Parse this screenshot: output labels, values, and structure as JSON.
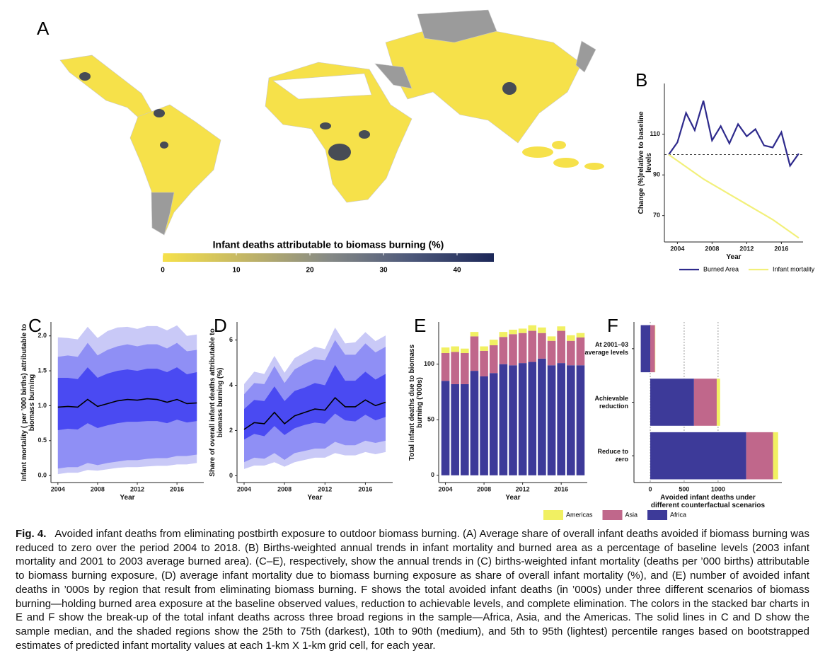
{
  "chart_data": [
    {
      "type": "map",
      "panel": "A",
      "no_data_color": "#9b9b9b",
      "colorbar": {
        "title": "Infant deaths attributable to biomass burning (%)",
        "lim": [
          0,
          45
        ],
        "ticks": [
          0,
          10,
          20,
          30,
          40
        ],
        "colors": [
          "#f6e14a",
          "#c2b566",
          "#868a86",
          "#4d587a",
          "#1c2758"
        ]
      }
    },
    {
      "type": "line",
      "panel": "B",
      "x": [
        2003,
        2004,
        2005,
        2006,
        2007,
        2008,
        2009,
        2010,
        2011,
        2012,
        2013,
        2014,
        2015,
        2016,
        2017,
        2018
      ],
      "xlim": [
        2002.5,
        2018.5
      ],
      "xticks": [
        2004,
        2008,
        2012,
        2016
      ],
      "ylim": [
        57,
        135
      ],
      "yticks": [
        70,
        90,
        110
      ],
      "xlabel": "Year",
      "ylabel": "Change (%)relative to baseline levels",
      "reference_line": 100,
      "legend": "bottom",
      "series": [
        {
          "name": "Burned Area",
          "color": "#2e2a8c",
          "values": [
            100,
            106,
            120.5,
            112,
            126.5,
            107,
            114,
            105.5,
            115,
            109,
            112.5,
            104.5,
            103.5,
            111,
            94.5,
            100.5
          ]
        },
        {
          "name": "Infant mortality",
          "color": "#f2f07a",
          "values": [
            100,
            97,
            94,
            91,
            88,
            85.5,
            83,
            80.5,
            78,
            75.5,
            73,
            70.5,
            68,
            65,
            62,
            59
          ]
        }
      ]
    },
    {
      "type": "band",
      "panel": "C",
      "x": [
        2004,
        2005,
        2006,
        2007,
        2008,
        2009,
        2010,
        2011,
        2012,
        2013,
        2014,
        2015,
        2016,
        2017,
        2018
      ],
      "xlim": [
        2003.3,
        2018.7
      ],
      "xticks": [
        2004,
        2008,
        2012,
        2016
      ],
      "ylim": [
        -0.1,
        2.2
      ],
      "yticks": [
        {
          "value": 0,
          "label": "0.0"
        },
        {
          "value": 0.5,
          "label": "0.5"
        },
        {
          "value": 1,
          "label": "1.0"
        },
        {
          "value": 1.5,
          "label": "1.5"
        },
        {
          "value": 2,
          "label": "2.0"
        }
      ],
      "xlabel": "Year",
      "ylabel": "Infant mortality ( per ’000 births) attributable to biomass burning",
      "bands": [
        {
          "color": "#c9c9f7",
          "lower": [
            0.02,
            0.04,
            0.04,
            0.08,
            0.07,
            0.09,
            0.11,
            0.12,
            0.12,
            0.13,
            0.14,
            0.14,
            0.16,
            0.16,
            0.18
          ],
          "upper": [
            1.98,
            1.97,
            1.95,
            2.13,
            1.97,
            2.07,
            2.12,
            2.13,
            2.1,
            2.14,
            2.14,
            2.08,
            2.15,
            2.0,
            2.02
          ]
        },
        {
          "color": "#8f8ff5",
          "lower": [
            0.1,
            0.12,
            0.12,
            0.18,
            0.15,
            0.18,
            0.2,
            0.22,
            0.22,
            0.24,
            0.25,
            0.25,
            0.28,
            0.28,
            0.3
          ],
          "upper": [
            1.7,
            1.72,
            1.7,
            1.9,
            1.72,
            1.8,
            1.85,
            1.88,
            1.85,
            1.88,
            1.88,
            1.82,
            1.9,
            1.78,
            1.8
          ]
        },
        {
          "color": "#4a4af2",
          "lower": [
            0.65,
            0.67,
            0.66,
            0.75,
            0.68,
            0.72,
            0.75,
            0.77,
            0.77,
            0.78,
            0.78,
            0.75,
            0.8,
            0.76,
            0.78
          ],
          "upper": [
            1.4,
            1.4,
            1.38,
            1.55,
            1.4,
            1.46,
            1.5,
            1.52,
            1.5,
            1.53,
            1.53,
            1.48,
            1.55,
            1.45,
            1.48
          ]
        }
      ],
      "median": {
        "color": "#000000",
        "values": [
          0.98,
          0.99,
          0.98,
          1.09,
          0.99,
          1.03,
          1.07,
          1.09,
          1.08,
          1.1,
          1.09,
          1.05,
          1.09,
          1.03,
          1.04
        ]
      }
    },
    {
      "type": "band",
      "panel": "D",
      "x": [
        2004,
        2005,
        2006,
        2007,
        2008,
        2009,
        2010,
        2011,
        2012,
        2013,
        2014,
        2015,
        2016,
        2017,
        2018
      ],
      "xlim": [
        2003.3,
        2018.7
      ],
      "xticks": [
        2004,
        2008,
        2012,
        2016
      ],
      "ylim": [
        -0.3,
        6.8
      ],
      "yticks": [
        0,
        2,
        4,
        6
      ],
      "xlabel": "Year",
      "ylabel": "Share of overall infant deaths attributable to biomass burning (%)",
      "bands": [
        {
          "color": "#c9c9f7",
          "lower": [
            0.3,
            0.45,
            0.45,
            0.6,
            0.4,
            0.6,
            0.7,
            0.8,
            0.8,
            1.0,
            0.9,
            0.9,
            1.05,
            0.95,
            1.05
          ],
          "upper": [
            4.05,
            4.6,
            4.5,
            5.3,
            4.55,
            5.2,
            5.45,
            5.7,
            5.6,
            6.55,
            5.85,
            5.9,
            6.35,
            5.95,
            6.2
          ]
        },
        {
          "color": "#8f8ff5",
          "lower": [
            0.6,
            0.8,
            0.75,
            1.0,
            0.7,
            1.0,
            1.1,
            1.2,
            1.2,
            1.5,
            1.35,
            1.35,
            1.55,
            1.45,
            1.55
          ],
          "upper": [
            3.6,
            4.1,
            4.05,
            4.85,
            4.1,
            4.7,
            4.95,
            5.15,
            5.1,
            6.0,
            5.35,
            5.35,
            5.85,
            5.45,
            5.7
          ]
        },
        {
          "color": "#4a4af2",
          "lower": [
            1.6,
            1.85,
            1.75,
            2.2,
            1.8,
            2.1,
            2.25,
            2.35,
            2.3,
            2.75,
            2.45,
            2.4,
            2.7,
            2.45,
            2.6
          ],
          "upper": [
            2.95,
            3.35,
            3.3,
            3.95,
            3.3,
            3.75,
            3.9,
            4.1,
            4.0,
            4.9,
            4.2,
            4.2,
            4.6,
            4.25,
            4.5
          ]
        }
      ],
      "median": {
        "color": "#000000",
        "values": [
          2.05,
          2.35,
          2.3,
          2.8,
          2.3,
          2.65,
          2.8,
          2.95,
          2.9,
          3.45,
          3.05,
          3.05,
          3.35,
          3.1,
          3.25
        ]
      }
    },
    {
      "type": "bar",
      "panel": "E",
      "stacked": true,
      "x": [
        2004,
        2005,
        2006,
        2007,
        2008,
        2009,
        2010,
        2011,
        2012,
        2013,
        2014,
        2015,
        2016,
        2017,
        2018
      ],
      "xlim": [
        2003.3,
        2018.7
      ],
      "xticks": [
        2004,
        2008,
        2012,
        2016
      ],
      "ylim": [
        -6.5,
        138
      ],
      "yticks": [
        0,
        50,
        100
      ],
      "xlabel": "Year",
      "ylabel": "Total infant deaths due to biomass burning (’000s)",
      "legend": "bottom-right",
      "series": [
        {
          "name": "Africa",
          "color": "#3d3a99",
          "values": [
            85,
            82,
            82,
            94,
            89,
            92,
            100,
            99,
            101,
            102,
            105,
            99,
            101,
            99,
            99
          ]
        },
        {
          "name": "Asia",
          "color": "#c0678b",
          "values": [
            25,
            29,
            28,
            31,
            23,
            25,
            24.5,
            28,
            27,
            28,
            23,
            22,
            29,
            22,
            25
          ]
        },
        {
          "name": "Americas",
          "color": "#f1f062",
          "values": [
            5,
            5,
            4,
            4,
            4,
            5,
            4.5,
            4,
            4,
            5,
            5,
            4,
            4,
            5,
            4
          ]
        }
      ]
    },
    {
      "type": "barh",
      "panel": "F",
      "stacked": true,
      "categories": [
        "At 2001–03 average levels",
        "Achievable reduction",
        "Reduce to zero"
      ],
      "xlim": [
        -240,
        1940
      ],
      "xticks": [
        0,
        500,
        1000
      ],
      "grid": true,
      "xlabel": "Avoided infant deaths under different counterfactual scenarios",
      "series": [
        {
          "color": "#3d3a99",
          "values": [
            -140,
            645,
            1415
          ]
        },
        {
          "color": "#c0678b",
          "values": [
            70,
            335,
            395
          ]
        },
        {
          "color": "#f1f062",
          "values": [
            5,
            50,
            75
          ]
        }
      ]
    }
  ],
  "caption": {
    "label": "Fig. 4.",
    "text": "Avoided infant deaths from eliminating postbirth exposure to outdoor biomass burning. (A) Average share of overall infant deaths avoided if biomass burning was reduced to zero over the period 2004 to 2018. (B) Births-weighted annual trends in infant mortality and burned area as a percentage of baseline levels (2003 infant mortality and 2001 to 2003 average burned area). (C–E), respectively, show the annual trends in (C) births-weighted infant mortality (deaths per ’000 births) attributable to biomass burning exposure, (D) average infant mortality due to biomass burning exposure as share of overall infant mortality (%), and (E) number of avoided infant deaths in ’000s by region that result from eliminating biomass burning. F shows the total avoided infant deaths (in ’000s) under three different scenarios of biomass burning—holding burned area exposure at the baseline observed values, reduction to achievable levels, and complete elimination. The colors in the stacked bar charts in E and F show the break-up of the total infant deaths across three broad regions in the sample—Africa, Asia, and the Americas. The solid lines in C and D show the sample median, and the shaded regions show the 25th to 75th (darkest), 10th to 90th (medium), and 5th to 95th (lightest) percentile ranges based on bootstrapped estimates of predicted infant mortality values at each 1-km X 1-km grid cell, for each year."
  }
}
